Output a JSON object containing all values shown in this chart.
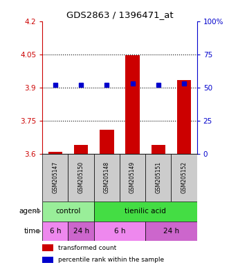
{
  "title": "GDS2863 / 1396471_at",
  "samples": [
    "GSM205147",
    "GSM205150",
    "GSM205148",
    "GSM205149",
    "GSM205151",
    "GSM205152"
  ],
  "bar_values": [
    3.61,
    3.64,
    3.71,
    4.045,
    3.64,
    3.935
  ],
  "bar_bottom": 3.6,
  "percentile_values": [
    52,
    52,
    52,
    53,
    52,
    53
  ],
  "ylim_left": [
    3.6,
    4.2
  ],
  "yticks_left": [
    3.6,
    3.75,
    3.9,
    4.05,
    4.2
  ],
  "ytick_labels_left": [
    "3.6",
    "3.75",
    "3.9",
    "4.05",
    "4.2"
  ],
  "yticks_right": [
    0,
    25,
    50,
    75,
    100
  ],
  "ytick_labels_right": [
    "0",
    "25",
    "50",
    "75",
    "100%"
  ],
  "hlines": [
    3.75,
    3.9,
    4.05
  ],
  "bar_color": "#cc0000",
  "dot_color": "#0000cc",
  "sample_box_color": "#cccccc",
  "control_color": "#99ee99",
  "tienilic_color": "#44dd44",
  "time_light_color": "#ee88ee",
  "time_dark_color": "#cc66cc",
  "legend_bar_label": "transformed count",
  "legend_dot_label": "percentile rank within the sample",
  "left_color": "#cc0000",
  "right_color": "#0000cc",
  "bar_width": 0.55
}
